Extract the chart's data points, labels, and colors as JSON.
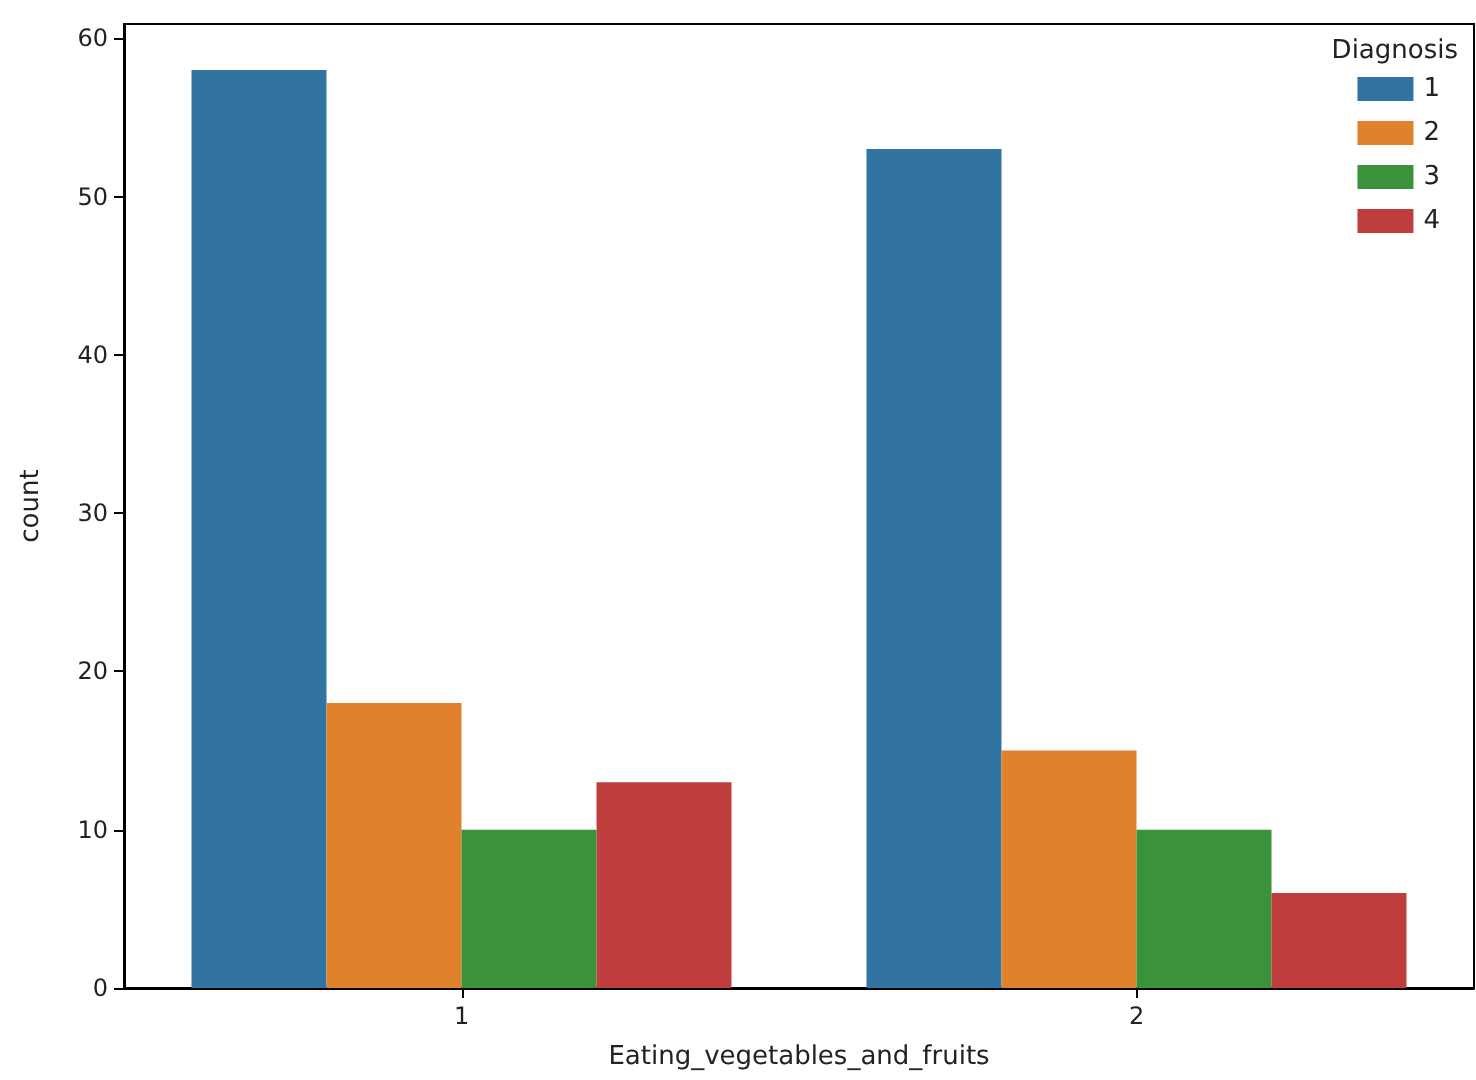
{
  "chart_data": {
    "type": "bar",
    "xlabel": "Eating_vegetables_and_fruits",
    "ylabel": "count",
    "legend_title": "Diagnosis",
    "legend": "top right",
    "grid": false,
    "categories": [
      "1",
      "2"
    ],
    "ylim": [
      0,
      60.9
    ],
    "yticks": [
      0,
      10,
      20,
      30,
      40,
      50,
      60
    ],
    "series": [
      {
        "name": "1",
        "color": "#3274a1",
        "values": [
          58,
          53
        ]
      },
      {
        "name": "2",
        "color": "#e1812c",
        "values": [
          18,
          15
        ]
      },
      {
        "name": "3",
        "color": "#3a923a",
        "values": [
          10,
          10
        ]
      },
      {
        "name": "4",
        "color": "#c03d3e",
        "values": [
          13,
          6
        ]
      }
    ]
  }
}
